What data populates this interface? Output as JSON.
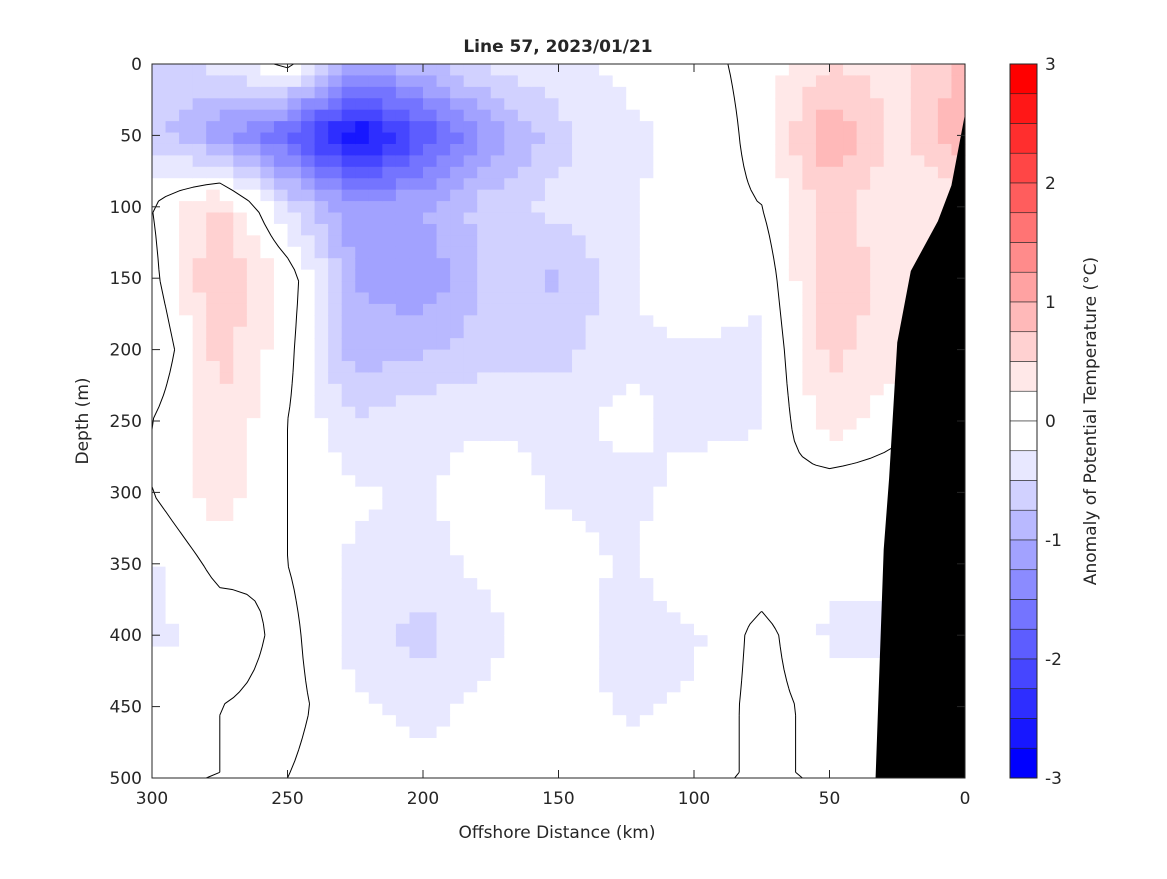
{
  "chart_data": {
    "type": "heatmap",
    "title": "Line 57, 2023/01/21",
    "xlabel": "Offshore Distance (km)",
    "ylabel": "Depth (m)",
    "colorbar_label": "Anomaly of Potential Temperature (°C)",
    "xlim": [
      300,
      0
    ],
    "ylim": [
      0,
      500
    ],
    "x_reversed": true,
    "y_reversed": true,
    "xticks": [
      300,
      250,
      200,
      150,
      100,
      50,
      0
    ],
    "yticks": [
      0,
      50,
      100,
      150,
      200,
      250,
      300,
      350,
      400,
      450,
      500
    ],
    "clim": [
      -3,
      3
    ],
    "cticks": [
      3,
      2,
      1,
      0,
      -1,
      -2,
      -3
    ],
    "contour_step": 0.25,
    "colormap": {
      "low": "#0000ff",
      "mid": "#ffffff",
      "high": "#ff0000"
    },
    "zero_contour_color": "#000000",
    "bathymetry_color": "#000000",
    "x": [
      300,
      275,
      250,
      225,
      200,
      175,
      150,
      125,
      100,
      75,
      50,
      25,
      0
    ],
    "depth": [
      0,
      50,
      100,
      150,
      200,
      250,
      300,
      350,
      400,
      450,
      500
    ],
    "values": [
      [
        -0.6,
        -0.4,
        0.1,
        -1.0,
        -0.8,
        -0.4,
        -0.3,
        -0.2,
        -0.1,
        0.1,
        0.5,
        0.4,
        0.8
      ],
      [
        -0.6,
        -1.2,
        -1.8,
        -2.8,
        -2.0,
        -1.2,
        -0.6,
        -0.3,
        -0.2,
        0.1,
        1.0,
        0.4,
        1.0
      ],
      [
        0.0,
        0.6,
        -0.5,
        -1.2,
        -1.0,
        -0.6,
        -0.4,
        -0.3,
        -0.1,
        0.0,
        0.6,
        0.3,
        0.3
      ],
      [
        -0.1,
        0.8,
        0.2,
        -1.0,
        -1.2,
        -0.7,
        -0.8,
        -0.3,
        0.0,
        -0.2,
        0.7,
        0.4,
        0.4
      ],
      [
        -0.3,
        0.6,
        0.1,
        -0.9,
        -0.8,
        -0.6,
        -0.6,
        -0.3,
        -0.3,
        -0.3,
        0.6,
        0.3,
        0.3
      ],
      [
        0.0,
        0.5,
        0.0,
        -0.5,
        -0.3,
        -0.3,
        -0.3,
        -0.2,
        -0.3,
        -0.3,
        0.4,
        0.1,
        0.1
      ],
      [
        0.0,
        0.4,
        0.0,
        -0.2,
        -0.3,
        -0.1,
        -0.3,
        -0.3,
        -0.2,
        0.0,
        -0.2,
        -0.2,
        -0.2
      ],
      [
        -0.3,
        0.1,
        0.0,
        -0.3,
        -0.3,
        -0.2,
        -0.1,
        -0.3,
        0.0,
        -0.2,
        -0.2,
        -0.2,
        -0.2
      ],
      [
        -0.3,
        -0.2,
        0.1,
        -0.4,
        -0.6,
        -0.3,
        0.0,
        -0.4,
        -0.3,
        0.1,
        -0.3,
        -0.3,
        -0.3
      ],
      [
        -0.1,
        0.0,
        0.1,
        -0.2,
        -0.3,
        -0.2,
        -0.1,
        -0.3,
        -0.2,
        0.1,
        -0.1,
        -0.1,
        -0.1
      ],
      [
        0.0,
        0.0,
        0.0,
        -0.2,
        -0.2,
        -0.1,
        0.0,
        -0.1,
        0.0,
        0.0,
        0.0,
        0.0,
        0.0
      ]
    ],
    "bathymetry": [
      [
        0,
        35
      ],
      [
        5,
        85
      ],
      [
        10,
        110
      ],
      [
        20,
        145
      ],
      [
        25,
        195
      ],
      [
        28,
        290
      ],
      [
        30,
        340
      ],
      [
        33,
        500
      ],
      [
        0,
        500
      ]
    ]
  }
}
